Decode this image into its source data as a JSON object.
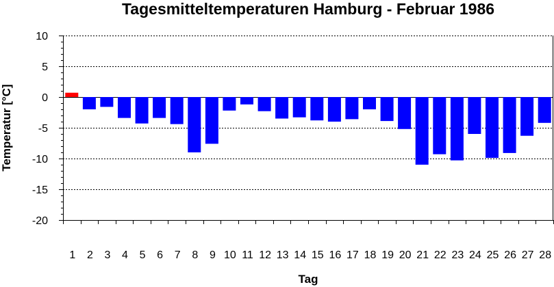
{
  "chart_data": {
    "type": "bar",
    "title": "Tagesmitteltemperaturen Hamburg - Februar 1986",
    "xlabel": "Tag",
    "ylabel": "Temperatur [°C]",
    "ylim": [
      -20,
      10
    ],
    "yticks": [
      10,
      5,
      0,
      -5,
      -10,
      -15,
      -20
    ],
    "grid": true,
    "categories": [
      "1",
      "2",
      "3",
      "4",
      "5",
      "6",
      "7",
      "8",
      "9",
      "10",
      "11",
      "12",
      "13",
      "14",
      "15",
      "16",
      "17",
      "18",
      "19",
      "20",
      "21",
      "22",
      "23",
      "24",
      "25",
      "26",
      "27",
      "28"
    ],
    "values": [
      0.7,
      -2.0,
      -1.6,
      -3.4,
      -4.3,
      -3.4,
      -4.4,
      -9.0,
      -7.6,
      -2.2,
      -1.2,
      -2.3,
      -3.5,
      -3.3,
      -3.8,
      -4.0,
      -3.6,
      -2.0,
      -3.9,
      -5.2,
      -11.0,
      -9.3,
      -10.3,
      -6.0,
      -9.9,
      -9.1,
      -6.3,
      -4.2
    ],
    "colors": {
      "positive": "#ff0000",
      "negative": "#0000ff"
    }
  }
}
